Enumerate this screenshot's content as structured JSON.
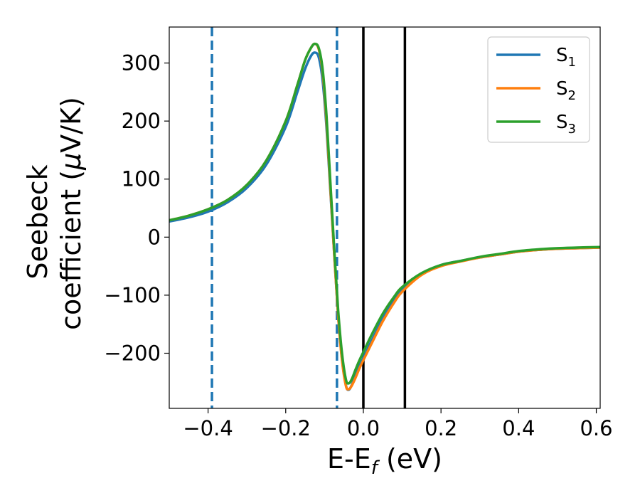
{
  "chart_data": {
    "type": "line",
    "xlabel": {
      "main": "E-E",
      "sub": "f",
      "tail": " (eV)"
    },
    "ylabel": {
      "line1": "Seebeck",
      "line2_pre": "coefficient  (",
      "line2_mu": "μ",
      "line2_post": "V/K)"
    },
    "xlim": [
      -0.5,
      0.61
    ],
    "ylim": [
      -295,
      362
    ],
    "xticks": [
      -0.4,
      -0.2,
      0.0,
      0.2,
      0.4,
      0.6
    ],
    "xtick_labels": [
      "−0.4",
      "−0.2",
      "0.0",
      "0.2",
      "0.4",
      "0.6"
    ],
    "yticks": [
      -200,
      -100,
      0,
      100,
      200,
      300
    ],
    "ytick_labels": [
      "−200",
      "−100",
      "0",
      "100",
      "200",
      "300"
    ],
    "legend_position": "top-right",
    "vlines": [
      {
        "x": -0.39,
        "style": "dashed",
        "color": "#1f77b4"
      },
      {
        "x": -0.068,
        "style": "dashed",
        "color": "#1f77b4"
      },
      {
        "x": 0.0,
        "style": "solid",
        "color": "#000000"
      },
      {
        "x": 0.107,
        "style": "solid",
        "color": "#000000"
      }
    ],
    "series": [
      {
        "name": "S",
        "sub": "1",
        "color": "#1f77b4",
        "x": [
          -0.5,
          -0.45,
          -0.4,
          -0.35,
          -0.3,
          -0.25,
          -0.2,
          -0.17,
          -0.15,
          -0.135,
          -0.125,
          -0.115,
          -0.105,
          -0.095,
          -0.085,
          -0.075,
          -0.065,
          -0.055,
          -0.045,
          -0.038,
          -0.03,
          -0.02,
          -0.01,
          0.0,
          0.02,
          0.05,
          0.08,
          0.1,
          0.15,
          0.2,
          0.25,
          0.3,
          0.35,
          0.4,
          0.45,
          0.5,
          0.55,
          0.61
        ],
        "y": [
          27,
          34,
          44,
          60,
          85,
          125,
          190,
          250,
          290,
          312,
          318,
          310,
          270,
          190,
          80,
          -30,
          -135,
          -210,
          -255,
          -263,
          -255,
          -238,
          -222,
          -208,
          -180,
          -140,
          -108,
          -90,
          -63,
          -48,
          -41,
          -35,
          -30,
          -25,
          -22,
          -20,
          -19,
          -18
        ]
      },
      {
        "name": "S",
        "sub": "2",
        "color": "#ff7f0e",
        "x": [
          -0.5,
          -0.45,
          -0.4,
          -0.35,
          -0.3,
          -0.25,
          -0.2,
          -0.17,
          -0.15,
          -0.135,
          -0.125,
          -0.115,
          -0.105,
          -0.095,
          -0.085,
          -0.075,
          -0.065,
          -0.055,
          -0.045,
          -0.038,
          -0.03,
          -0.02,
          -0.01,
          0.0,
          0.02,
          0.05,
          0.08,
          0.1,
          0.15,
          0.2,
          0.25,
          0.3,
          0.35,
          0.4,
          0.45,
          0.5,
          0.55,
          0.61
        ],
        "y": [
          29,
          37,
          48,
          64,
          90,
          132,
          200,
          262,
          305,
          326,
          333,
          324,
          285,
          200,
          85,
          -30,
          -135,
          -212,
          -256,
          -262,
          -256,
          -242,
          -226,
          -212,
          -185,
          -145,
          -112,
          -94,
          -65,
          -50,
          -42,
          -35,
          -30,
          -25,
          -22,
          -20,
          -19,
          -18
        ]
      },
      {
        "name": "S",
        "sub": "3",
        "color": "#2ca02c",
        "x": [
          -0.5,
          -0.45,
          -0.4,
          -0.35,
          -0.3,
          -0.25,
          -0.2,
          -0.17,
          -0.15,
          -0.135,
          -0.125,
          -0.115,
          -0.105,
          -0.095,
          -0.085,
          -0.075,
          -0.065,
          -0.055,
          -0.045,
          -0.038,
          -0.03,
          -0.02,
          -0.01,
          0.0,
          0.02,
          0.05,
          0.08,
          0.1,
          0.15,
          0.2,
          0.25,
          0.3,
          0.35,
          0.4,
          0.45,
          0.5,
          0.55,
          0.61
        ],
        "y": [
          29,
          37,
          48,
          64,
          90,
          132,
          200,
          262,
          305,
          326,
          333,
          326,
          290,
          210,
          95,
          -20,
          -125,
          -200,
          -245,
          -252,
          -245,
          -228,
          -212,
          -198,
          -170,
          -132,
          -102,
          -86,
          -62,
          -48,
          -41,
          -34,
          -29,
          -24,
          -21,
          -19,
          -18,
          -17
        ]
      }
    ]
  }
}
